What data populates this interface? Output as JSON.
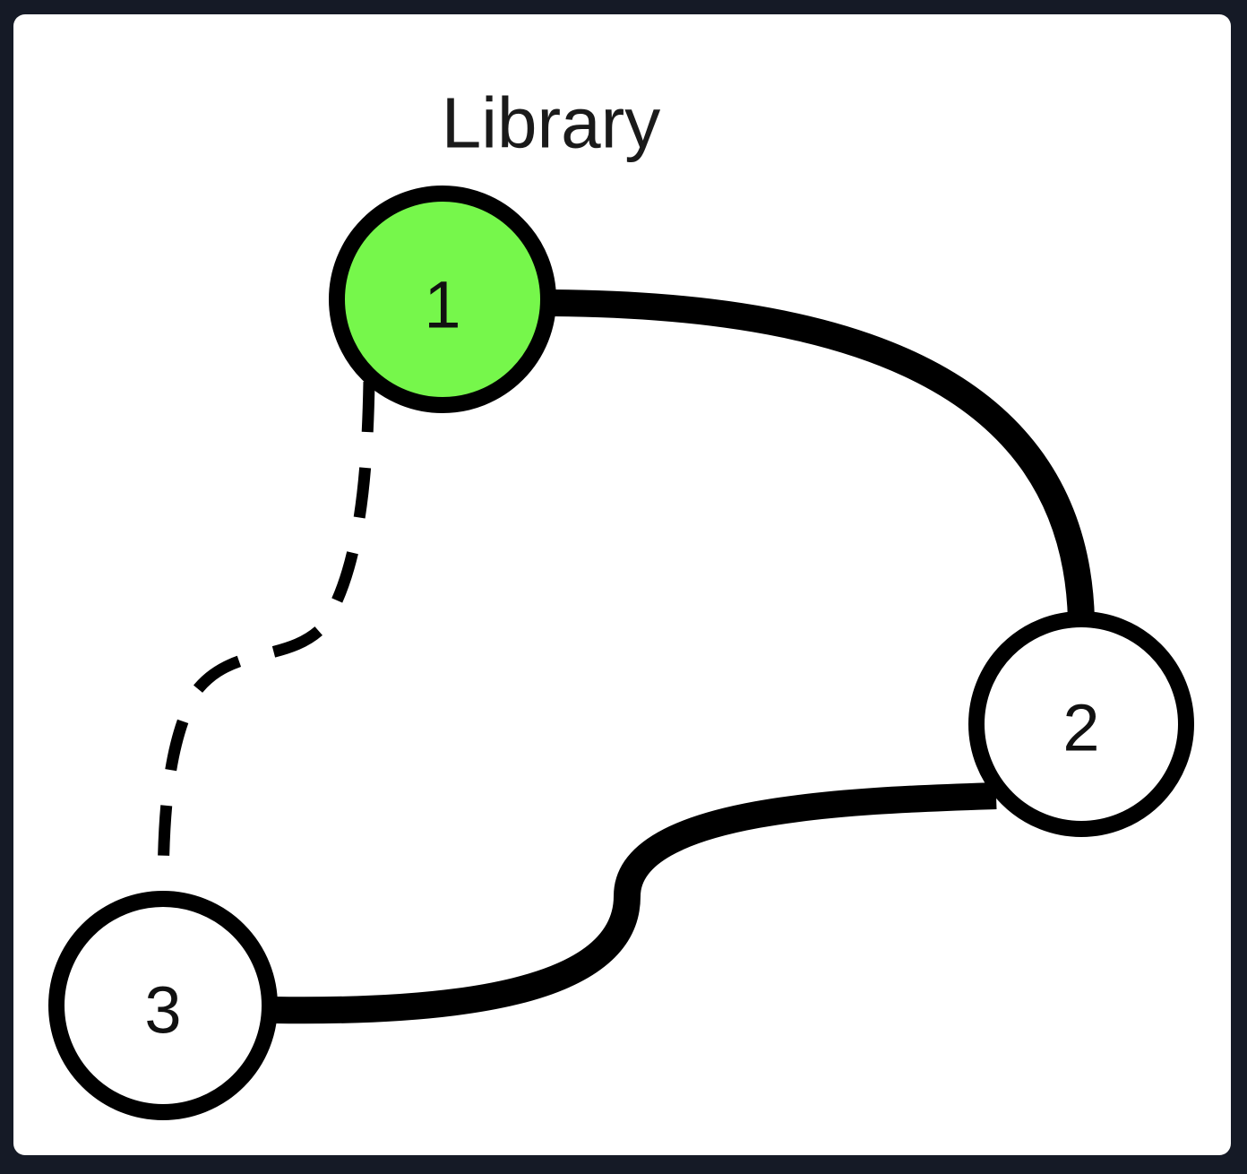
{
  "diagram": {
    "title": "Library",
    "nodes": [
      {
        "id": "1",
        "label": "1",
        "fill": "#76f74b",
        "highlighted": true
      },
      {
        "id": "2",
        "label": "2",
        "fill": "#ffffff",
        "highlighted": false
      },
      {
        "id": "3",
        "label": "3",
        "fill": "#ffffff",
        "highlighted": false
      }
    ],
    "edges": [
      {
        "from": "1",
        "to": "2",
        "style": "solid"
      },
      {
        "from": "2",
        "to": "3",
        "style": "solid"
      },
      {
        "from": "1",
        "to": "3",
        "style": "dashed"
      }
    ]
  },
  "colors": {
    "background": "#151a26",
    "card": "#ffffff",
    "stroke": "#000000",
    "highlight": "#76f74b"
  }
}
